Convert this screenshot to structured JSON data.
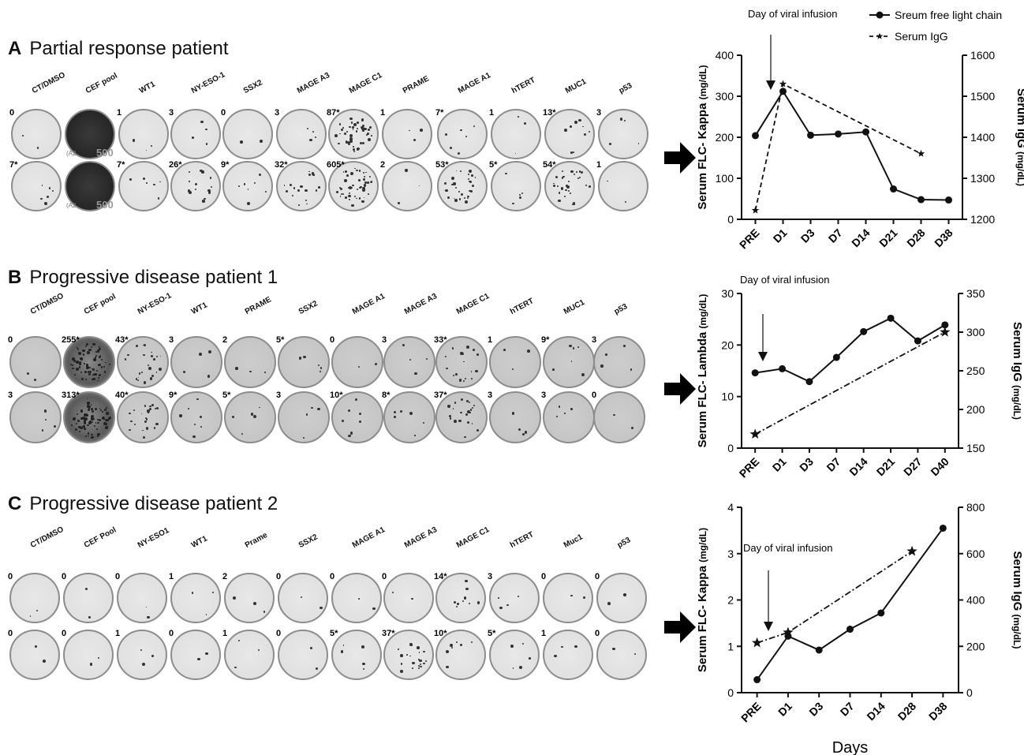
{
  "panels": [
    {
      "letter": "A",
      "title": "Partial response patient",
      "columns": [
        "CT/DMSO",
        "CEF pool",
        "WT1",
        "NY-ESO-1",
        "SSX2",
        "MAGE A3",
        "MAGE C1",
        "PRAME",
        "MAGE A1",
        "hTERT",
        "MUC1",
        "p53"
      ],
      "row1_counts": [
        "0",
        "",
        "1",
        "3",
        "0",
        "3",
        "87*",
        "1",
        "7*",
        "1",
        "13*",
        "3"
      ],
      "row2_counts": [
        "7*",
        "",
        "7*",
        "26*",
        "9*",
        "32*",
        "605*",
        "2",
        "53*",
        "5*",
        "54*",
        ""
      ],
      "row2_extra": [
        "",
        "",
        "",
        "",
        "",
        "",
        "",
        "",
        "",
        "",
        "",
        "1"
      ],
      "dark": [
        1,
        1
      ]
    },
    {
      "letter": "B",
      "title": "Progressive disease patient 1",
      "columns": [
        "CT/DMSO",
        "CEF pool",
        "NY-ESO-1",
        "WT1",
        "PRAME",
        "SSX2",
        "MAGE A1",
        "MAGE A3",
        "MAGE C1",
        "hTERT",
        "MUC1",
        "p53"
      ],
      "row1_counts": [
        "0",
        "255*",
        "43*",
        "3",
        "2",
        "5*",
        "0",
        "3",
        "33*",
        "1",
        "9*",
        "3"
      ],
      "row2_counts": [
        "3",
        "313*",
        "40*",
        "9*",
        "5*",
        "3",
        "10*",
        "8*",
        "37*",
        "3",
        "3",
        "0"
      ]
    },
    {
      "letter": "C",
      "title": "Progressive disease patient 2",
      "columns": [
        "CT/DMSO",
        "CEF Pool",
        "NY-ESO1",
        "WT1",
        "Prame",
        "SSX2",
        "MAGE A1",
        "MAGE A3",
        "MAGE C1",
        "hTERT",
        "Muc1",
        "p53"
      ],
      "row1_counts": [
        "0",
        "0",
        "0",
        "1",
        "2",
        "0",
        "0",
        "0",
        "14*",
        "3",
        "0",
        "0"
      ],
      "row2_counts": [
        "0",
        "0",
        "1",
        "0",
        "1",
        "0",
        "5*",
        "37*",
        "10*",
        "5*",
        "1",
        "0"
      ]
    }
  ],
  "well_marks": {
    "cef_overlay": "(A2",
    "cef_overlay2": "500"
  },
  "colors": {
    "line": "#111111",
    "well_light": "#e6e6e6",
    "well_dark": "#2a2a2a"
  },
  "chart_data": [
    {
      "type": "line",
      "categories": [
        "PRE",
        "D1",
        "D3",
        "D7",
        "D14",
        "D21",
        "D28",
        "D38"
      ],
      "ylabel": "Serum FLC- Kappa",
      "ylabel_unit": "(mg/dL)",
      "y2label": "Serum IgG",
      "y2label_unit": "(mg/dL)",
      "ylim": [
        0,
        400
      ],
      "yticks": [
        "0",
        "100",
        "200",
        "300",
        "400"
      ],
      "y2lim": [
        1200,
        1600
      ],
      "y2ticks": [
        "1200",
        "1300",
        "1400",
        "1500",
        "1600"
      ],
      "annotation": "Day of viral infusion",
      "legend": {
        "series1": "Sreum free light chain",
        "series2": "Serum IgG"
      },
      "series": [
        {
          "name": "Sreum free light chain",
          "axis": "left",
          "values": [
            204,
            312,
            205,
            208,
            213,
            74,
            48,
            47
          ]
        },
        {
          "name": "Serum IgG",
          "axis": "right",
          "points": [
            [
              0,
              1222
            ],
            [
              1,
              1530
            ],
            [
              6,
              1360
            ]
          ]
        }
      ]
    },
    {
      "type": "line",
      "categories": [
        "PRE",
        "D1",
        "D3",
        "D7",
        "D14",
        "D21",
        "D27",
        "D40"
      ],
      "ylabel": "Serum FLC- Lambda",
      "ylabel_unit": "(mg/dL)",
      "y2label": "Serum IgG",
      "y2label_unit": "(mg/dL)",
      "ylim": [
        0,
        30
      ],
      "yticks": [
        "0",
        "10",
        "20",
        "30"
      ],
      "y2lim": [
        150,
        350
      ],
      "y2ticks": [
        "150",
        "200",
        "250",
        "300",
        "350"
      ],
      "annotation": "Day of viral infusion",
      "series": [
        {
          "axis": "left",
          "values": [
            14.6,
            15.4,
            12.9,
            17.6,
            22.6,
            25.2,
            20.8,
            23.9
          ]
        },
        {
          "axis": "right",
          "points": [
            [
              0,
              168
            ],
            [
              7,
              300
            ]
          ]
        }
      ]
    },
    {
      "type": "line",
      "categories": [
        "PRE",
        "D1",
        "D3",
        "D7",
        "D14",
        "D28",
        "D38"
      ],
      "xlabel": "Days",
      "ylabel": "Serum FLC- Kappa",
      "ylabel_unit": "(mg/dL)",
      "y2label": "Serum IgG",
      "y2label_unit": "(mg/dL)",
      "ylim": [
        0,
        4
      ],
      "yticks": [
        "0",
        "1",
        "2",
        "3",
        "4"
      ],
      "y2lim": [
        0,
        800
      ],
      "y2ticks": [
        "0",
        "200",
        "400",
        "600",
        "800"
      ],
      "annotation": "Day of viral infusion",
      "series": [
        {
          "axis": "left",
          "values": [
            0.28,
            1.22,
            0.92,
            1.37,
            1.72,
            null,
            3.55
          ]
        },
        {
          "axis": "right",
          "points": [
            [
              0,
              215
            ],
            [
              1,
              260
            ],
            [
              5,
              610
            ]
          ]
        }
      ]
    }
  ]
}
